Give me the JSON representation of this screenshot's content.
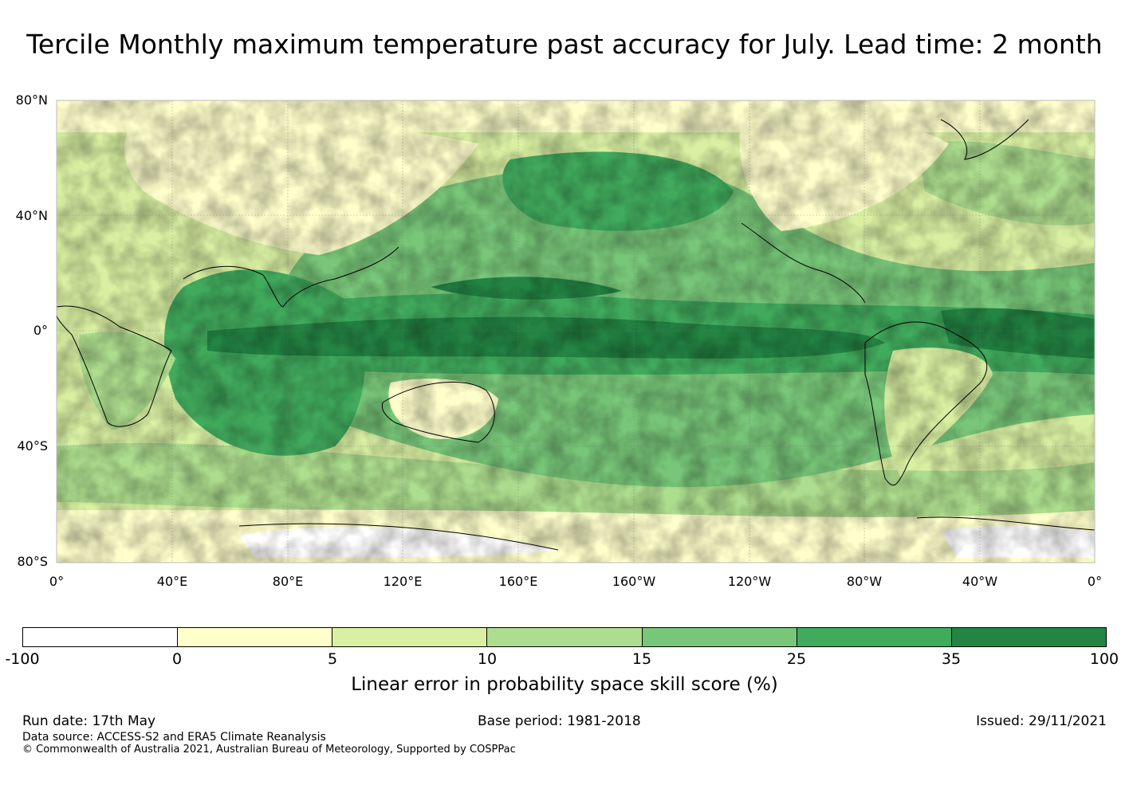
{
  "title": "Tercile Monthly maximum temperature past accuracy for July. Lead time: 2 month",
  "map": {
    "lat_labels": [
      "80°N",
      "40°N",
      "0°",
      "40°S",
      "80°S"
    ],
    "lon_labels": [
      "0°",
      "40°E",
      "80°E",
      "120°E",
      "160°E",
      "160°W",
      "120°W",
      "80°W",
      "40°W",
      "0°"
    ]
  },
  "colorbar": {
    "ticks": [
      "-100",
      "0",
      "5",
      "10",
      "15",
      "25",
      "35",
      "100"
    ],
    "colors": [
      "#ffffff",
      "#ffffcc",
      "#d9f0a3",
      "#addd8e",
      "#78c679",
      "#41ab5d",
      "#238443"
    ],
    "label": "Linear error in probability space skill score (%)"
  },
  "footer": {
    "run_date": "Run date: 17th May",
    "base_period": "Base period: 1981-2018",
    "issued": "Issued: 29/11/2021",
    "data_source": "Data source: ACCESS-S2 and ERA5 Climate Reanalysis",
    "copyright": "© Commonwealth of Australia 2021, Australian Bureau of Meteorology, Supported by COSPPac"
  }
}
